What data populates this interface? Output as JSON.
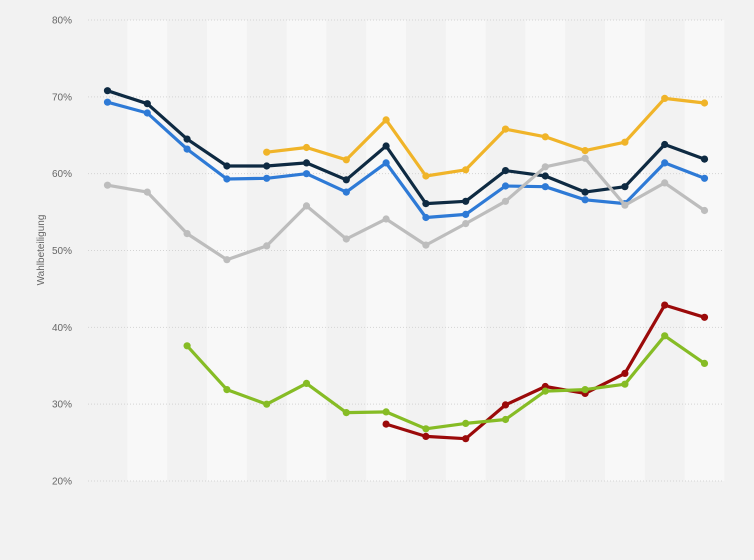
{
  "chart_data": {
    "type": "line",
    "title": "",
    "xlabel": "",
    "ylabel": "Wahlbeteiligung",
    "ylim": [
      20,
      80
    ],
    "yticks": [
      "20%",
      "30%",
      "40%",
      "50%",
      "60%",
      "70%",
      "80%"
    ],
    "grid": true,
    "x": [
      1,
      2,
      3,
      4,
      5,
      6,
      7,
      8,
      9,
      10,
      11,
      12,
      13,
      14,
      15,
      16
    ],
    "series": [
      {
        "color": "#f0b429",
        "values": [
          null,
          null,
          null,
          null,
          62.8,
          63.4,
          61.8,
          67.0,
          59.7,
          60.5,
          65.8,
          64.8,
          63.0,
          64.1,
          69.8,
          69.2
        ]
      },
      {
        "color": "#0e2a42",
        "values": [
          70.8,
          69.1,
          64.5,
          61.0,
          61.0,
          61.4,
          59.2,
          63.6,
          56.1,
          56.4,
          60.4,
          59.7,
          57.6,
          58.3,
          63.8,
          61.9
        ]
      },
      {
        "color": "#2e7ad6",
        "values": [
          69.3,
          67.9,
          63.2,
          59.3,
          59.4,
          60.0,
          57.6,
          61.4,
          54.3,
          54.7,
          58.4,
          58.3,
          56.6,
          56.1,
          61.4,
          59.4
        ]
      },
      {
        "color": "#bdbdbd",
        "values": [
          58.5,
          57.6,
          52.2,
          48.8,
          50.6,
          55.8,
          51.5,
          54.1,
          50.7,
          53.5,
          56.4,
          60.9,
          62.0,
          55.9,
          58.8,
          55.2
        ]
      },
      {
        "color": "#9b0a0a",
        "values": [
          null,
          null,
          null,
          null,
          null,
          null,
          null,
          27.4,
          25.8,
          25.5,
          29.9,
          32.3,
          31.4,
          34.0,
          42.9,
          41.3
        ]
      },
      {
        "color": "#86bc25",
        "values": [
          null,
          null,
          37.6,
          31.9,
          30.0,
          32.7,
          28.9,
          29.0,
          26.8,
          27.5,
          28.0,
          31.7,
          31.9,
          32.6,
          38.9,
          35.3
        ]
      }
    ]
  }
}
